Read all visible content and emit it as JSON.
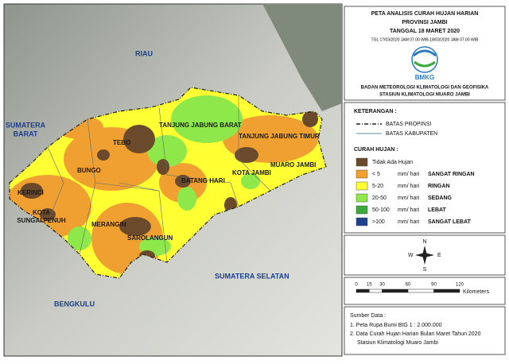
{
  "map_labels": {
    "riau": "RIAU",
    "sumbar": [
      "SUMATERA",
      "BARAT"
    ],
    "tjb": "TANJUNG JABUNG BARAT",
    "tjt": "TANJUNG JABUNG TIMUR",
    "tebo": "TEBO",
    "bungo": "BUNGO",
    "muaro_jambi": "MUARO JAMBI",
    "kota_jambi": "KOTA JAMBI",
    "batang_hari": "BATANG HARI",
    "kerinci": "KERINCI",
    "sungai_penuh": [
      "KOTA",
      "SUNGAI PENUH"
    ],
    "merangin": "MERANGIN",
    "sarolangun": "SAROLANGUN",
    "sumsel": "SUMATERA SELATAN",
    "bengkulu": "BENGKULU"
  },
  "header": {
    "title": [
      "PETA ANALISIS CURAH HUJAN HARIAN",
      "PROVINSI JAMBI",
      "TANGGAL 18 MARET 2020"
    ],
    "period": "TGL 17/03/2020 JAM 07.00 WIB-18/03/2020 JAM 07.00 WIB",
    "logo": "BMKG",
    "agency": [
      "BADAN METEOROLOGI KLIMATOLOGI DAN GEOFISIKA",
      "STASIUN KLIMATOLOGI MUARO JAMBI"
    ]
  },
  "legend": {
    "title": "KETERANGAN :",
    "boundaries": [
      "BATAS PROPINSI",
      "BATAS KABUPATEN"
    ],
    "rain_title": "CURAH HUJAN :",
    "items": [
      {
        "range": "Tidak Ada Hujan",
        "color": "#6b4a2b"
      },
      {
        "range": "< 5",
        "unit": "mm/ hari",
        "class": "SANGAT RINGAN",
        "color": "#f0a030"
      },
      {
        "range": "5-20",
        "unit": "mm/ hari",
        "class": "RINGAN",
        "color": "#ffff33"
      },
      {
        "range": "20-50",
        "unit": "mm/ hari",
        "class": "SEDANG",
        "color": "#8ee84a"
      },
      {
        "range": "50-100",
        "unit": "mm/ hari",
        "class": "LEBAT",
        "color": "#3aaa3a"
      },
      {
        "range": ">100",
        "unit": "mm/ hari",
        "class": "SANGAT LEBAT",
        "color": "#1f3f8f"
      }
    ]
  },
  "compass": {
    "n": "N",
    "e": "E",
    "s": "S",
    "w": "W"
  },
  "scale": {
    "ticks": [
      0,
      15,
      30,
      60,
      90,
      120
    ],
    "unit": "Kilometers"
  },
  "sources": {
    "title": "Sumber Data :",
    "lines": [
      "1. Peta Rupa Bumi BIG 1 : 2.000.000",
      "2. Data Curah Hujan Harian Bulan Maret Tahun 2020",
      "Stasiun Klimatologi Muaro Jambi"
    ]
  }
}
